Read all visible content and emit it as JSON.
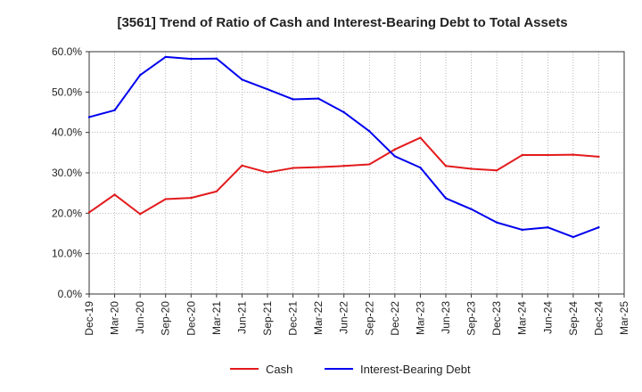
{
  "chart_data": {
    "type": "line",
    "title": "[3561]  Trend of Ratio of Cash and Interest-Bearing Debt to Total Assets",
    "xlabel": "",
    "ylabel": "",
    "x": [
      "Dec-19",
      "Mar-20",
      "Jun-20",
      "Sep-20",
      "Dec-20",
      "Mar-21",
      "Jun-21",
      "Sep-21",
      "Dec-21",
      "Mar-22",
      "Jun-22",
      "Sep-22",
      "Dec-22",
      "Mar-23",
      "Jun-23",
      "Sep-23",
      "Dec-23",
      "Mar-24",
      "Jun-24",
      "Sep-24",
      "Dec-24",
      "Mar-25"
    ],
    "ylim": [
      0,
      60
    ],
    "yticks": [
      "0.0%",
      "10.0%",
      "20.0%",
      "30.0%",
      "40.0%",
      "50.0%",
      "60.0%"
    ],
    "grid": true,
    "legend_position": "bottom",
    "series": [
      {
        "name": "Cash",
        "color": "#e31a1c",
        "values": [
          20.2,
          24.6,
          19.8,
          23.5,
          23.8,
          25.4,
          31.8,
          30.1,
          31.2,
          31.4,
          31.7,
          32.1,
          35.8,
          38.7,
          31.7,
          31.0,
          30.6,
          34.4,
          34.4,
          34.5,
          34.0,
          null
        ]
      },
      {
        "name": "Interest-Bearing Debt",
        "color": "#0000ee",
        "values": [
          43.8,
          45.5,
          54.2,
          58.7,
          58.2,
          58.3,
          53.1,
          50.7,
          48.2,
          48.4,
          45.0,
          40.3,
          34.1,
          31.3,
          23.7,
          21.0,
          17.7,
          15.9,
          16.5,
          14.1,
          16.5,
          null
        ]
      }
    ]
  }
}
